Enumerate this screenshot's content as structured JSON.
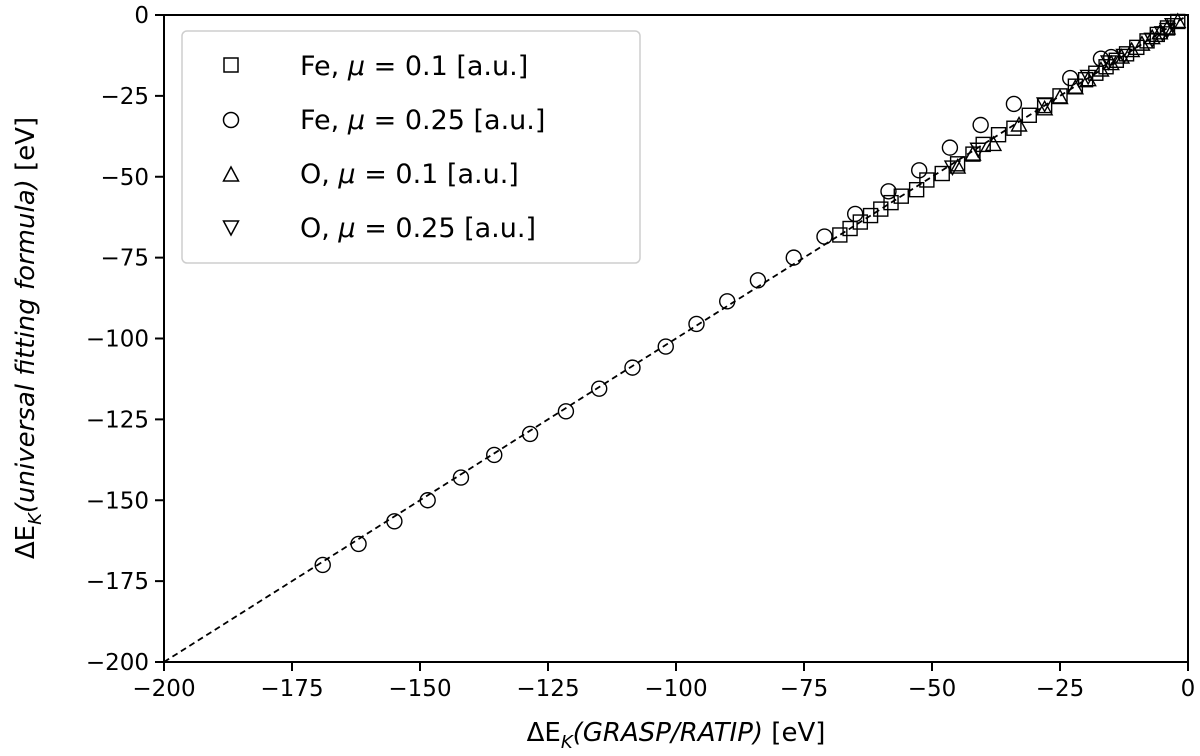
{
  "chart_data": {
    "type": "scatter",
    "xlim": [
      -200,
      0
    ],
    "ylim": [
      -200,
      0
    ],
    "x_ticks": [
      -200,
      -175,
      -150,
      -125,
      -100,
      -75,
      -50,
      -25,
      0
    ],
    "y_ticks": [
      -200,
      -175,
      -150,
      -125,
      -100,
      -75,
      -50,
      -25,
      0
    ],
    "xlabel": {
      "delta": "ΔE",
      "sub": "K",
      "paren": "(GRASP/RATIP)",
      "unit": " [eV]"
    },
    "ylabel": {
      "delta": "ΔE",
      "sub": "K",
      "paren": "(universal fitting formula)",
      "unit": " [eV]"
    },
    "grid": false,
    "legend_position": "top-left",
    "reference_line": {
      "style": "dashed",
      "color": "#000000",
      "from": [
        -200,
        -200
      ],
      "to": [
        0,
        0
      ]
    },
    "series": [
      {
        "name": "Fe, μ = 0.1 [a.u.]",
        "label_prefix": "Fe, ",
        "label_mu": "μ",
        "label_value": " = 0.1 [a.u.]",
        "marker": "square",
        "x": [
          -68,
          -66,
          -64,
          -62,
          -60,
          -58,
          -56,
          -53,
          -51,
          -48,
          -45,
          -42,
          -40,
          -37,
          -34,
          -31,
          -28,
          -25,
          -22,
          -20,
          -18,
          -16,
          -14,
          -12,
          -10,
          -8,
          -6,
          -4,
          -2
        ],
        "y": [
          -68,
          -66,
          -64,
          -62,
          -60,
          -58,
          -56,
          -54,
          -51,
          -49,
          -46,
          -43,
          -40,
          -37,
          -35,
          -31,
          -28,
          -25,
          -22,
          -20,
          -18,
          -16,
          -14,
          -12,
          -10,
          -8,
          -6,
          -4,
          -2
        ]
      },
      {
        "name": "Fe, μ = 0.25 [a.u.]",
        "label_prefix": "Fe, ",
        "label_mu": "μ",
        "label_value": " = 0.25 [a.u.]",
        "marker": "circle",
        "x": [
          -169,
          -162,
          -155,
          -148.5,
          -142,
          -135.5,
          -128.5,
          -121.5,
          -115,
          -108.5,
          -102,
          -96,
          -90,
          -84,
          -77,
          -71,
          -65,
          -58.5,
          -52.5,
          -46.5,
          -40.5,
          -34,
          -23,
          -17,
          -15
        ],
        "y": [
          -170,
          -163.5,
          -156.5,
          -150,
          -143,
          -136,
          -129.5,
          -122.5,
          -115.5,
          -109,
          -102.5,
          -95.5,
          -88.5,
          -82,
          -75,
          -68.5,
          -61.5,
          -54.5,
          -48,
          -41,
          -34,
          -27.5,
          -19.5,
          -13.5,
          -13
        ]
      },
      {
        "name": "O, μ = 0.1 [a.u.]",
        "label_prefix": "O, ",
        "label_mu": "μ",
        "label_value": " = 0.1 [a.u.]",
        "marker": "triangle-up",
        "x": [
          -45,
          -42,
          -38,
          -33,
          -28,
          -25,
          -22,
          -19.5,
          -17,
          -15,
          -13,
          -11,
          -9,
          -7,
          -5.5,
          -4,
          -2
        ],
        "y": [
          -47,
          -43,
          -40,
          -34,
          -29,
          -25.5,
          -22.5,
          -20,
          -17,
          -15,
          -13,
          -11,
          -9,
          -7,
          -5.5,
          -4,
          -2
        ]
      },
      {
        "name": "O, μ = 0.25 [a.u.]",
        "label_prefix": "O, ",
        "label_mu": "μ",
        "label_value": " = 0.25 [a.u.]",
        "marker": "triangle-down",
        "x": [
          -46,
          -41,
          -28,
          -19.5,
          -15.5,
          -12.5,
          -7,
          -5,
          -4,
          -3
        ],
        "y": [
          -47,
          -41.5,
          -27.5,
          -19,
          -14.5,
          -12.5,
          -7.5,
          -5.5,
          -4.5,
          -3
        ]
      }
    ]
  }
}
